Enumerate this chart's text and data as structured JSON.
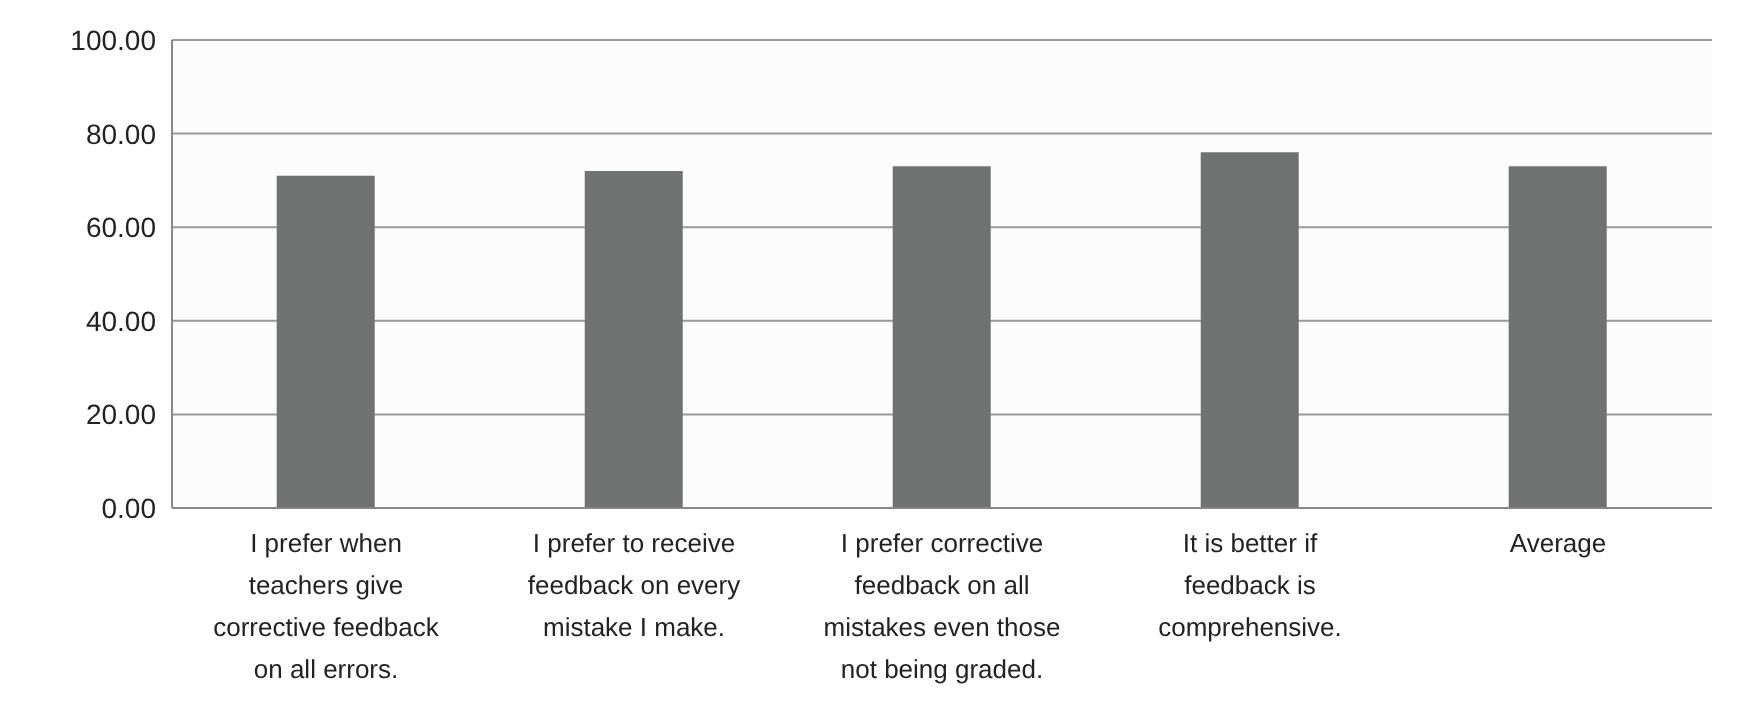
{
  "chart_data": {
    "type": "bar",
    "categories": [
      "I prefer when teachers give corrective feedback on all errors.",
      "I prefer to receive feedback on every mistake I make.",
      "I prefer corrective feedback on all mistakes even those not being graded.",
      "It is better if feedback is comprehensive.",
      "Average"
    ],
    "values": [
      71,
      72,
      73,
      76,
      73
    ],
    "color": "#6e7372",
    "ylim": [
      0,
      100
    ],
    "yticks": [
      {
        "value": 0,
        "label": "0.00"
      },
      {
        "value": 20,
        "label": "20.00"
      },
      {
        "value": 40,
        "label": "40.00"
      },
      {
        "value": 60,
        "label": "60.00"
      },
      {
        "value": 80,
        "label": "80.00"
      },
      {
        "value": 100,
        "label": "100.00"
      }
    ],
    "grid": "y"
  }
}
